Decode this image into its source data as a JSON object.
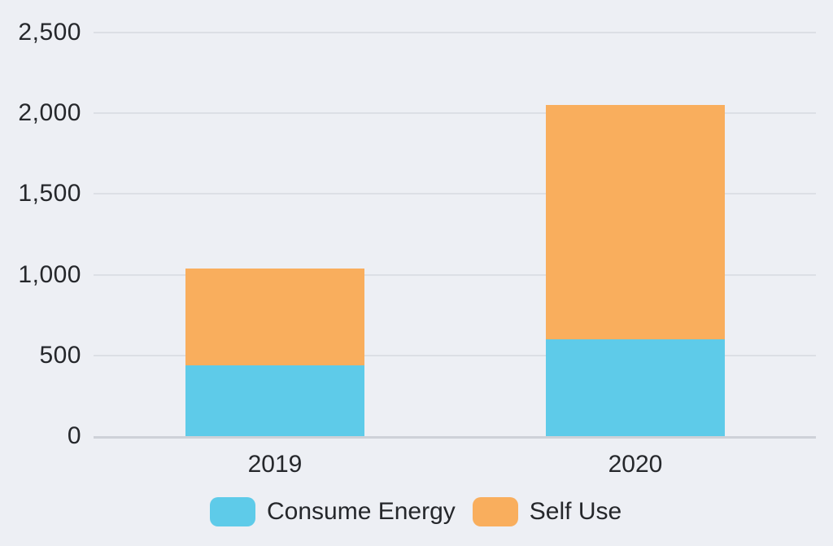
{
  "colors": {
    "background": "#edeff4",
    "grid_line": "#dcdfe5",
    "axis_line": "#ced1d8",
    "text": "#25272b",
    "consume_energy": "#5ecbe9",
    "self_use": "#f9ae5d"
  },
  "chart_data": {
    "type": "bar",
    "stacked": true,
    "title": "",
    "xlabel": "",
    "ylabel": "",
    "categories": [
      "2019",
      "2020"
    ],
    "series": [
      {
        "name": "Consume Energy",
        "color": "#5ecbe9",
        "values": [
          440,
          600
        ]
      },
      {
        "name": "Self Use",
        "color": "#f9ae5d",
        "values": [
          600,
          1450
        ]
      }
    ],
    "totals": [
      1040,
      2050
    ],
    "ylim": [
      0,
      2500
    ],
    "yticks": [
      0,
      500,
      1000,
      1500,
      2000,
      2500
    ],
    "ytick_labels": [
      "0",
      "500",
      "1,000",
      "1,500",
      "2,000",
      "2,500"
    ],
    "grid": true,
    "legend_position": "bottom"
  }
}
